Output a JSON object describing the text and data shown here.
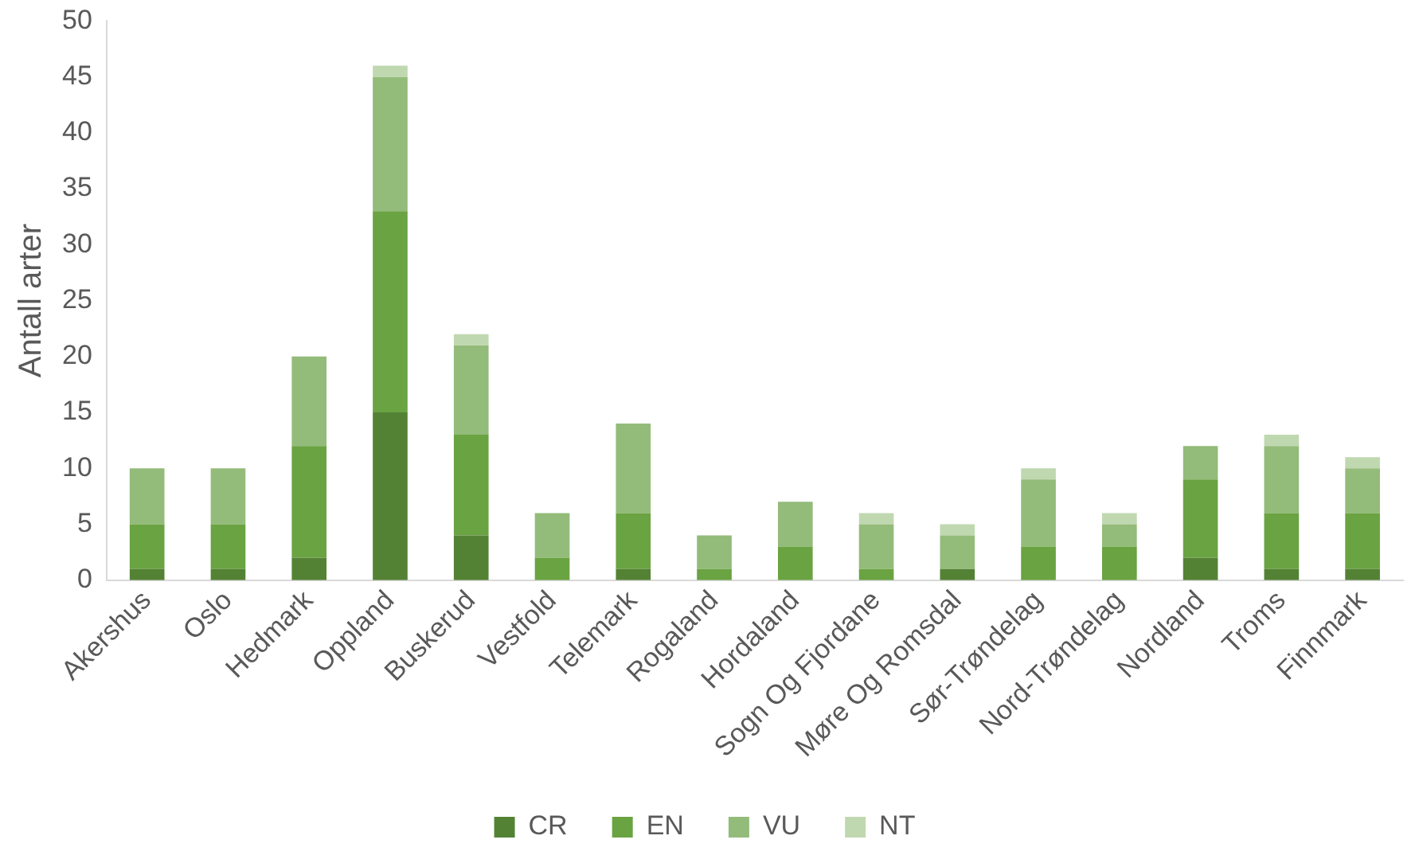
{
  "chart_data": {
    "type": "bar",
    "stacked": true,
    "ylabel": "Antall arter",
    "categories": [
      "Akershus",
      "Oslo",
      "Hedmark",
      "Oppland",
      "Buskerud",
      "Vestfold",
      "Telemark",
      "Rogaland",
      "Hordaland",
      "Sogn Og Fjordane",
      "Møre Og Romsdal",
      "Sør-Trøndelag",
      "Nord-Trøndelag",
      "Nordland",
      "Troms",
      "Finnmark"
    ],
    "series": [
      {
        "name": "CR",
        "color": "#548235",
        "values": [
          1,
          1,
          2,
          15,
          4,
          0,
          1,
          0,
          0,
          0,
          1,
          0,
          0,
          2,
          1,
          1
        ]
      },
      {
        "name": "EN",
        "color": "#6aa342",
        "values": [
          4,
          4,
          10,
          18,
          9,
          2,
          5,
          1,
          3,
          1,
          0,
          3,
          3,
          7,
          5,
          5
        ]
      },
      {
        "name": "VU",
        "color": "#93bb7a",
        "values": [
          5,
          5,
          8,
          12,
          8,
          4,
          8,
          3,
          4,
          4,
          3,
          6,
          2,
          3,
          6,
          4
        ]
      },
      {
        "name": "NT",
        "color": "#c0d8b0",
        "values": [
          0,
          0,
          0,
          1,
          1,
          0,
          0,
          0,
          0,
          1,
          1,
          1,
          1,
          0,
          1,
          1
        ]
      }
    ],
    "ylim": [
      0,
      50
    ],
    "yticks": [
      0,
      5,
      10,
      15,
      20,
      25,
      30,
      35,
      40,
      45,
      50
    ],
    "grid": false,
    "legend": "bottom"
  }
}
